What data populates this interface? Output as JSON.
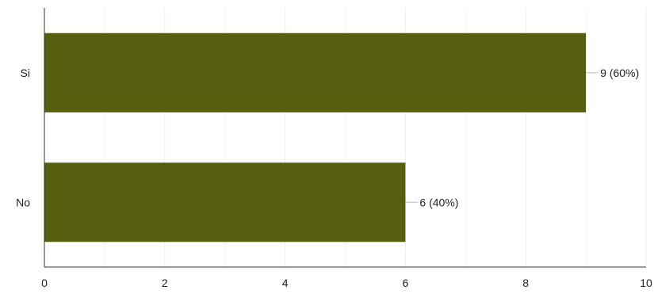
{
  "chart_data": {
    "type": "bar",
    "orientation": "horizontal",
    "categories": [
      "Si",
      "No"
    ],
    "values": [
      9,
      6
    ],
    "data_labels": [
      "9 (60%)",
      "6 (40%)"
    ],
    "xlim": [
      0,
      10
    ],
    "x_ticks": [
      0,
      2,
      4,
      6,
      8,
      10
    ],
    "grid": true,
    "legend": "none",
    "bar_color": "#585e10",
    "grid_color": "#ececec",
    "axis_color": "#333333",
    "leader_color": "#bbbbbb"
  }
}
